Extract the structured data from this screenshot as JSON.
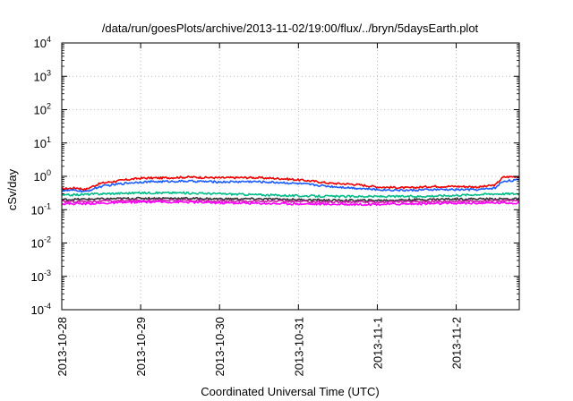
{
  "chart_data": {
    "type": "line",
    "title": "/data/run/goesPlots/archive/2013-11-02/19:00/flux/../bryn/5daysEarth.plot",
    "xlabel": "Coordinated Universal Time (UTC)",
    "ylabel": "cSv/day",
    "y_scale": "log",
    "ylim": [
      0.0001,
      10000
    ],
    "y_ticks": [
      {
        "base": "10",
        "exp": "4"
      },
      {
        "base": "10",
        "exp": "3"
      },
      {
        "base": "10",
        "exp": "2"
      },
      {
        "base": "10",
        "exp": "1"
      },
      {
        "base": "10",
        "exp": "0"
      },
      {
        "base": "10",
        "exp": "-1"
      },
      {
        "base": "10",
        "exp": "-2"
      },
      {
        "base": "10",
        "exp": "-3"
      },
      {
        "base": "10",
        "exp": "-4"
      }
    ],
    "x_range_days": [
      0,
      5.8
    ],
    "x_ticks": [
      {
        "label": "2013-10-28",
        "day": 0
      },
      {
        "label": "2013-10-29",
        "day": 1
      },
      {
        "label": "2013-10-30",
        "day": 2
      },
      {
        "label": "2013-10-31",
        "day": 3
      },
      {
        "label": "2013-11-1",
        "day": 4
      },
      {
        "label": "2013-11-2",
        "day": 5
      }
    ],
    "grid": true,
    "legend": "none",
    "series": [
      {
        "color": "#ee0000",
        "x": [
          0,
          0.2,
          0.3,
          0.5,
          0.8,
          1.0,
          1.3,
          1.6,
          2.0,
          2.4,
          2.8,
          3.1,
          3.4,
          3.7,
          4.0,
          4.4,
          4.7,
          5.0,
          5.3,
          5.5,
          5.6,
          5.8
        ],
        "y": [
          0.42,
          0.45,
          0.4,
          0.62,
          0.78,
          0.88,
          0.9,
          0.95,
          0.9,
          0.92,
          0.85,
          0.75,
          0.62,
          0.58,
          0.48,
          0.45,
          0.5,
          0.5,
          0.48,
          0.55,
          0.95,
          1.0
        ]
      },
      {
        "color": "#1a5cff",
        "x": [
          0,
          0.2,
          0.3,
          0.5,
          0.8,
          1.0,
          1.3,
          1.6,
          2.0,
          2.4,
          2.8,
          3.1,
          3.4,
          3.7,
          4.0,
          4.4,
          4.7,
          5.0,
          5.3,
          5.5,
          5.6,
          5.8
        ],
        "y": [
          0.37,
          0.38,
          0.34,
          0.5,
          0.62,
          0.68,
          0.7,
          0.72,
          0.68,
          0.7,
          0.65,
          0.58,
          0.5,
          0.45,
          0.4,
          0.38,
          0.4,
          0.4,
          0.4,
          0.45,
          0.72,
          0.78
        ]
      },
      {
        "color": "#00bb88",
        "x": [
          0,
          0.5,
          1.0,
          1.5,
          2.0,
          2.5,
          3.0,
          3.5,
          4.0,
          4.5,
          5.0,
          5.5,
          5.8
        ],
        "y": [
          0.27,
          0.3,
          0.32,
          0.32,
          0.3,
          0.28,
          0.26,
          0.25,
          0.25,
          0.25,
          0.27,
          0.3,
          0.3
        ]
      },
      {
        "color": "#333333",
        "x": [
          0,
          0.5,
          1.0,
          1.5,
          2.0,
          2.5,
          3.0,
          3.5,
          4.0,
          4.5,
          5.0,
          5.5,
          5.8
        ],
        "y": [
          0.2,
          0.21,
          0.22,
          0.22,
          0.21,
          0.21,
          0.2,
          0.19,
          0.19,
          0.2,
          0.21,
          0.21,
          0.21
        ]
      },
      {
        "color": "#cc22aa",
        "x": [
          0,
          0.5,
          1.0,
          1.5,
          2.0,
          2.5,
          3.0,
          3.5,
          4.0,
          4.5,
          5.0,
          5.5,
          5.8
        ],
        "y": [
          0.175,
          0.18,
          0.19,
          0.19,
          0.18,
          0.18,
          0.175,
          0.17,
          0.17,
          0.175,
          0.18,
          0.185,
          0.185
        ]
      },
      {
        "color": "#ff00ff",
        "x": [
          0,
          0.5,
          1.0,
          1.5,
          2.0,
          2.5,
          3.0,
          3.5,
          4.0,
          4.5,
          5.0,
          5.5,
          5.8
        ],
        "y": [
          0.15,
          0.155,
          0.17,
          0.17,
          0.16,
          0.155,
          0.15,
          0.145,
          0.145,
          0.15,
          0.155,
          0.16,
          0.16
        ]
      }
    ]
  }
}
